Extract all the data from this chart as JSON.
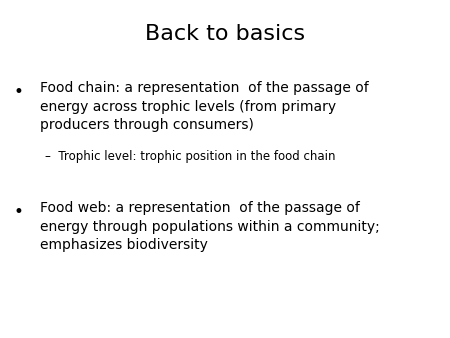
{
  "title": "Back to basics",
  "title_fontsize": 16,
  "title_color": "#000000",
  "background_color": "#ffffff",
  "bullet1": "Food chain: a representation  of the passage of\nenergy across trophic levels (from primary\nproducers through consumers)",
  "sub_bullet1": "–  Trophic level: trophic position in the food chain",
  "bullet2": "Food web: a representation  of the passage of\nenergy through populations within a community;\nemphasizes biodiversity",
  "bullet_fontsize": 10,
  "sub_bullet_fontsize": 8.5,
  "bullet_color": "#000000",
  "font_family": "DejaVu Sans",
  "bullet_char": "•"
}
